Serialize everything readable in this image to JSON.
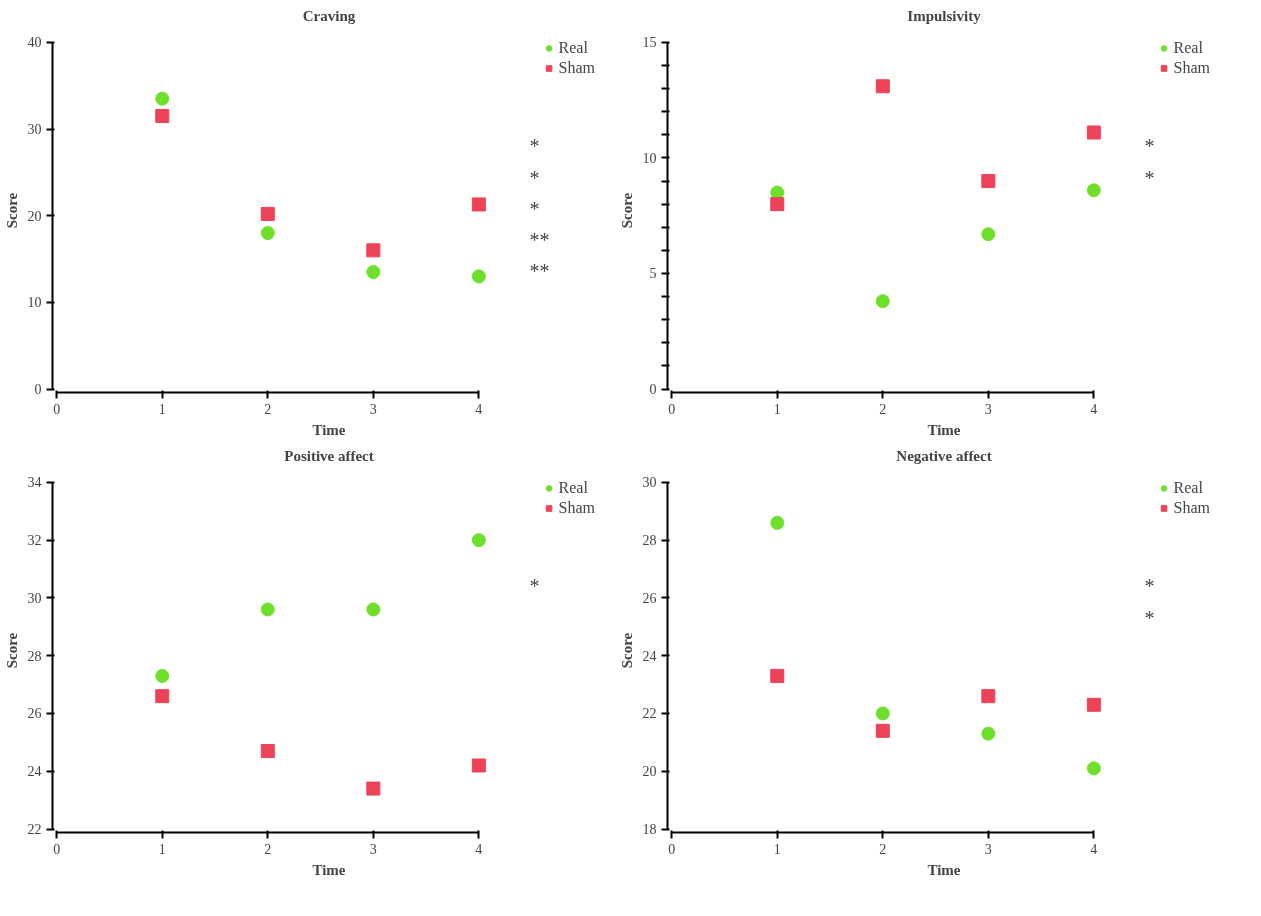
{
  "chart_data": [
    {
      "type": "scatter",
      "title": "Craving",
      "xlabel": "Time",
      "ylabel": "Score",
      "x": [
        1,
        2,
        3,
        4
      ],
      "xlim": [
        0,
        4
      ],
      "xticks": [
        0,
        1,
        2,
        3,
        4
      ],
      "ylim": [
        0,
        40
      ],
      "yticks": [
        0,
        10,
        20,
        30,
        40
      ],
      "legend": "right",
      "grid": false,
      "series": [
        {
          "name": "Real",
          "color": "#6ee02a",
          "marker": "circle",
          "values": [
            33.5,
            18,
            13.5,
            13
          ]
        },
        {
          "name": "Sham",
          "color": "#ee4258",
          "marker": "square",
          "values": [
            31.5,
            20.2,
            16,
            21.3
          ]
        }
      ],
      "annotations": [
        "*",
        "*",
        "*",
        "**",
        "**"
      ]
    },
    {
      "type": "scatter",
      "title": "Impulsivity",
      "xlabel": "Time",
      "ylabel": "Score",
      "x": [
        1,
        2,
        3,
        4
      ],
      "xlim": [
        0,
        4
      ],
      "xticks": [
        0,
        1,
        2,
        3,
        4
      ],
      "ylim": [
        0,
        15
      ],
      "yticks": [
        0,
        {
          "value": 1,
          "label": null
        },
        {
          "value": 2,
          "label": null
        },
        {
          "value": 3,
          "label": null
        },
        {
          "value": 4,
          "label": null
        },
        5,
        {
          "value": 6,
          "label": null
        },
        {
          "value": 7,
          "label": null
        },
        {
          "value": 8,
          "label": null
        },
        {
          "value": 9,
          "label": null
        },
        10,
        {
          "value": 11,
          "label": null
        },
        {
          "value": 12,
          "label": null
        },
        {
          "value": 13,
          "label": null
        },
        {
          "value": 14,
          "label": null
        },
        15
      ],
      "legend": "right",
      "grid": false,
      "series": [
        {
          "name": "Real",
          "color": "#6ee02a",
          "marker": "circle",
          "values": [
            8.5,
            3.8,
            6.7,
            8.6
          ]
        },
        {
          "name": "Sham",
          "color": "#ee4258",
          "marker": "square",
          "values": [
            8,
            13.1,
            9,
            11.1
          ]
        }
      ],
      "annotations": [
        "*",
        "*"
      ]
    },
    {
      "type": "scatter",
      "title": "Positive affect",
      "xlabel": "Time",
      "ylabel": "Score",
      "x": [
        1,
        2,
        3,
        4
      ],
      "xlim": [
        0,
        4
      ],
      "xticks": [
        0,
        1,
        2,
        3,
        4
      ],
      "ylim": [
        22,
        34
      ],
      "yticks": [
        22,
        24,
        26,
        28,
        30,
        32,
        34
      ],
      "legend": "right",
      "grid": false,
      "series": [
        {
          "name": "Real",
          "color": "#6ee02a",
          "marker": "circle",
          "values": [
            27.3,
            29.6,
            29.6,
            32
          ]
        },
        {
          "name": "Sham",
          "color": "#ee4258",
          "marker": "square",
          "values": [
            26.6,
            24.7,
            23.4,
            24.2
          ]
        }
      ],
      "annotations": [
        "*"
      ]
    },
    {
      "type": "scatter",
      "title": "Negative affect",
      "xlabel": "Time",
      "ylabel": "Score",
      "x": [
        1,
        2,
        3,
        4
      ],
      "xlim": [
        0,
        4
      ],
      "xticks": [
        0,
        1,
        2,
        3,
        4
      ],
      "ylim": [
        18,
        30
      ],
      "yticks": [
        18,
        20,
        22,
        24,
        26,
        28,
        30
      ],
      "legend": "right",
      "grid": false,
      "series": [
        {
          "name": "Real",
          "color": "#6ee02a",
          "marker": "circle",
          "values": [
            28.6,
            22,
            21.3,
            20.1
          ]
        },
        {
          "name": "Sham",
          "color": "#ee4258",
          "marker": "square",
          "values": [
            23.3,
            21.4,
            22.6,
            22.3
          ]
        }
      ],
      "annotations": [
        "*",
        "*"
      ]
    }
  ]
}
